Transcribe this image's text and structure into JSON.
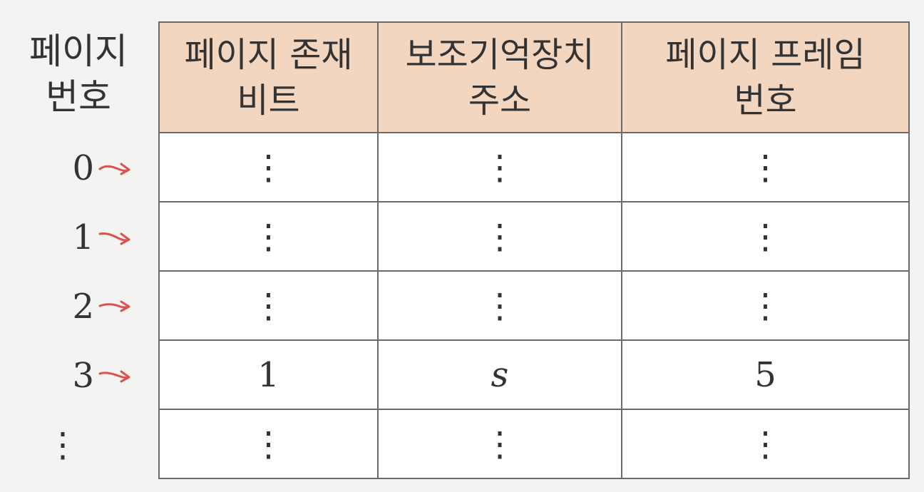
{
  "row_header": {
    "line1": "페이지",
    "line2": "번호"
  },
  "columns": [
    {
      "line1": "페이지 존재",
      "line2": "비트"
    },
    {
      "line1": "보조기억장치",
      "line2": "주소"
    },
    {
      "line1": "페이지 프레임",
      "line2": "번호"
    }
  ],
  "rows": [
    {
      "label": "0",
      "cells": [
        "⋮",
        "⋮",
        "⋮"
      ]
    },
    {
      "label": "1",
      "cells": [
        "⋮",
        "⋮",
        "⋮"
      ]
    },
    {
      "label": "2",
      "cells": [
        "⋮",
        "⋮",
        "⋮"
      ]
    },
    {
      "label": "3",
      "cells": [
        "1",
        "s",
        "5"
      ]
    },
    {
      "label": "⋮",
      "cells": [
        "⋮",
        "⋮",
        "⋮"
      ]
    }
  ],
  "colors": {
    "header_fill": "#f2d6c0",
    "arrow": "#d9534f",
    "border": "#6a6a6a"
  },
  "icons": {
    "row_pointer": "red-hand-drawn-arrow-icon"
  }
}
